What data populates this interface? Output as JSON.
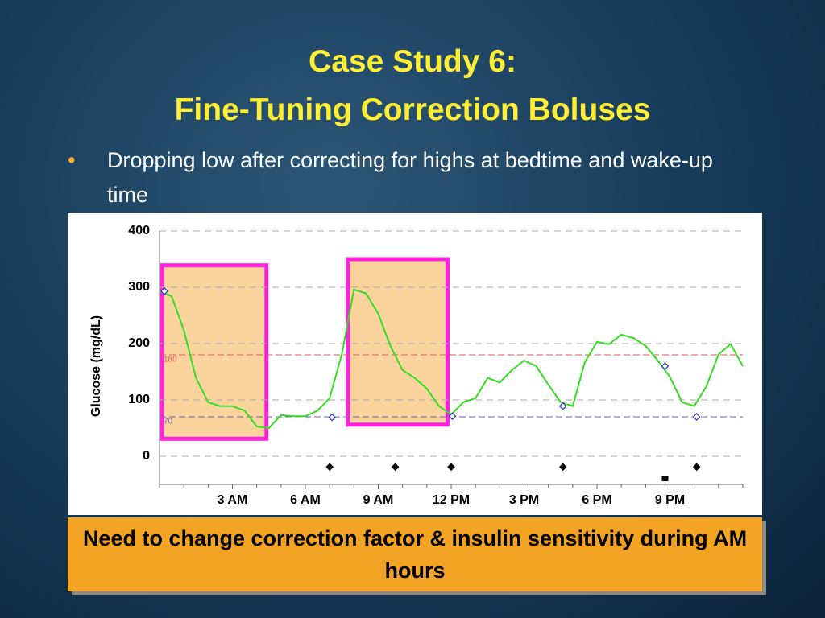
{
  "slide": {
    "title": [
      "Case Study 6:",
      "Fine-Tuning Correction Boluses"
    ],
    "bullets": [
      "Dropping low after correcting for highs at bedtime and wake-up time"
    ],
    "callout": "Need to change correction factor & insulin sensitivity during AM hours"
  },
  "chart_data": {
    "type": "line",
    "y_label": "Glucose  (mg/dL)",
    "xlim": [
      0,
      24
    ],
    "ylim": [
      -50,
      400
    ],
    "yticks": [
      0,
      100,
      200,
      300,
      400
    ],
    "xticks": [
      {
        "value": 3,
        "label": "3 AM"
      },
      {
        "value": 6,
        "label": "6 AM"
      },
      {
        "value": 9,
        "label": "9 AM"
      },
      {
        "value": 12,
        "label": "12 PM"
      },
      {
        "value": 15,
        "label": "3 PM"
      },
      {
        "value": 18,
        "label": "6 PM"
      },
      {
        "value": 21,
        "label": "9 PM"
      }
    ],
    "grid": true,
    "reference_lines": [
      {
        "value": 180,
        "label": "180",
        "color": "#e05555"
      },
      {
        "value": 70,
        "label": "70",
        "color": "#6a6ac8"
      }
    ],
    "series": [
      {
        "color": "#33dd22",
        "marker": "none",
        "x": [
          0,
          0.5,
          1,
          1.5,
          2,
          2.5,
          3,
          3.5,
          4,
          4.5,
          5,
          5.5,
          6,
          6.5,
          7,
          7.5,
          8,
          8.5,
          9,
          9.5,
          10,
          10.5,
          11,
          11.5,
          12,
          12.5,
          13,
          13.5,
          14,
          14.5,
          15,
          15.5,
          16,
          16.5,
          17,
          17.5,
          18,
          18.5,
          19,
          19.5,
          20,
          20.5,
          21,
          21.5,
          22,
          22.5,
          23,
          23.5,
          24
        ],
        "values": [
          293,
          284,
          224,
          139,
          96,
          89,
          89,
          81,
          53,
          50,
          73,
          71,
          71,
          81,
          103,
          181,
          296,
          289,
          253,
          196,
          153,
          139,
          120,
          89,
          74,
          96,
          103,
          139,
          131,
          153,
          170,
          160,
          127,
          96,
          89,
          167,
          203,
          199,
          216,
          210,
          196,
          170,
          141,
          96,
          89,
          124,
          181,
          199,
          160
        ]
      },
      {
        "color": "#2233cc",
        "marker": "open-diamond",
        "x": [
          0.2,
          7.1,
          12.05,
          16.6,
          20.8,
          22.1
        ],
        "values": [
          293,
          69,
          71,
          89,
          160,
          70
        ]
      },
      {
        "color": "#000000",
        "marker": "diamond",
        "x": [
          7.0,
          9.7,
          12.0,
          16.6,
          22.1
        ],
        "values": [
          -19,
          -19,
          -19,
          -19,
          -19
        ]
      },
      {
        "color": "#000000",
        "marker": "square",
        "x": [
          20.8
        ],
        "values": [
          -40
        ]
      }
    ],
    "highlights": [
      {
        "x": [
          0.1,
          4.4
        ],
        "y": [
          31,
          339
        ],
        "color": "#ff22dd"
      },
      {
        "x": [
          7.75,
          11.85
        ],
        "y": [
          56,
          350
        ],
        "color": "#ff22dd"
      }
    ]
  }
}
